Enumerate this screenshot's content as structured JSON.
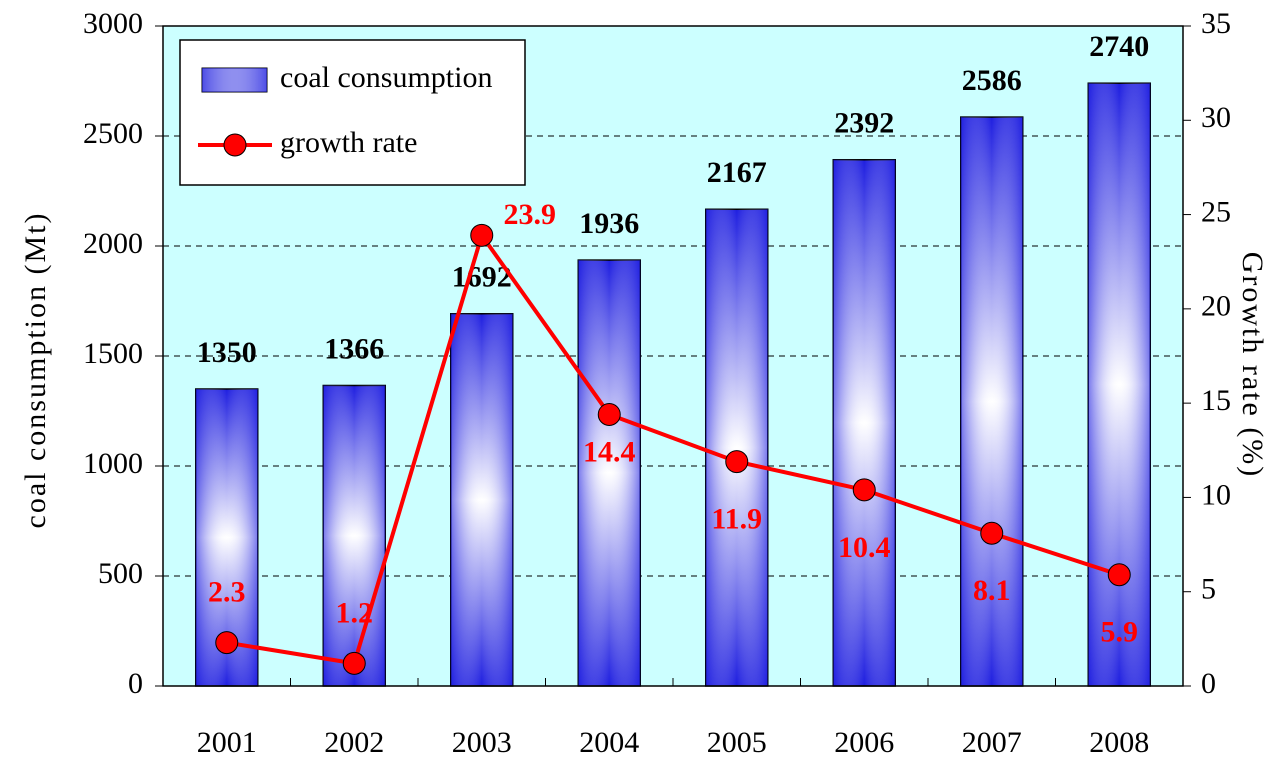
{
  "chart_data": {
    "type": "bar",
    "categories": [
      "2001",
      "2002",
      "2003",
      "2004",
      "2005",
      "2006",
      "2007",
      "2008"
    ],
    "series": [
      {
        "name": "coal consumption",
        "type": "bar",
        "color": "#1f1fe0",
        "values": [
          1350,
          1366,
          1692,
          1936,
          2167,
          2392,
          2586,
          2740
        ]
      },
      {
        "name": "growth rate",
        "type": "line",
        "axis": "y2",
        "color": "#ff0000",
        "values": [
          2.3,
          1.2,
          23.9,
          14.4,
          11.9,
          10.4,
          8.1,
          5.9
        ]
      }
    ],
    "ylabel": "coal consumption (Mt)",
    "y2label": "Growth rate (%)",
    "ylim": [
      0,
      3000
    ],
    "yticks": [
      0,
      500,
      1000,
      1500,
      2000,
      2500,
      3000
    ],
    "y2lim": [
      0,
      35
    ],
    "y2ticks": [
      0,
      5,
      10,
      15,
      20,
      25,
      30,
      35
    ],
    "grid": true,
    "legend": "upper left"
  }
}
